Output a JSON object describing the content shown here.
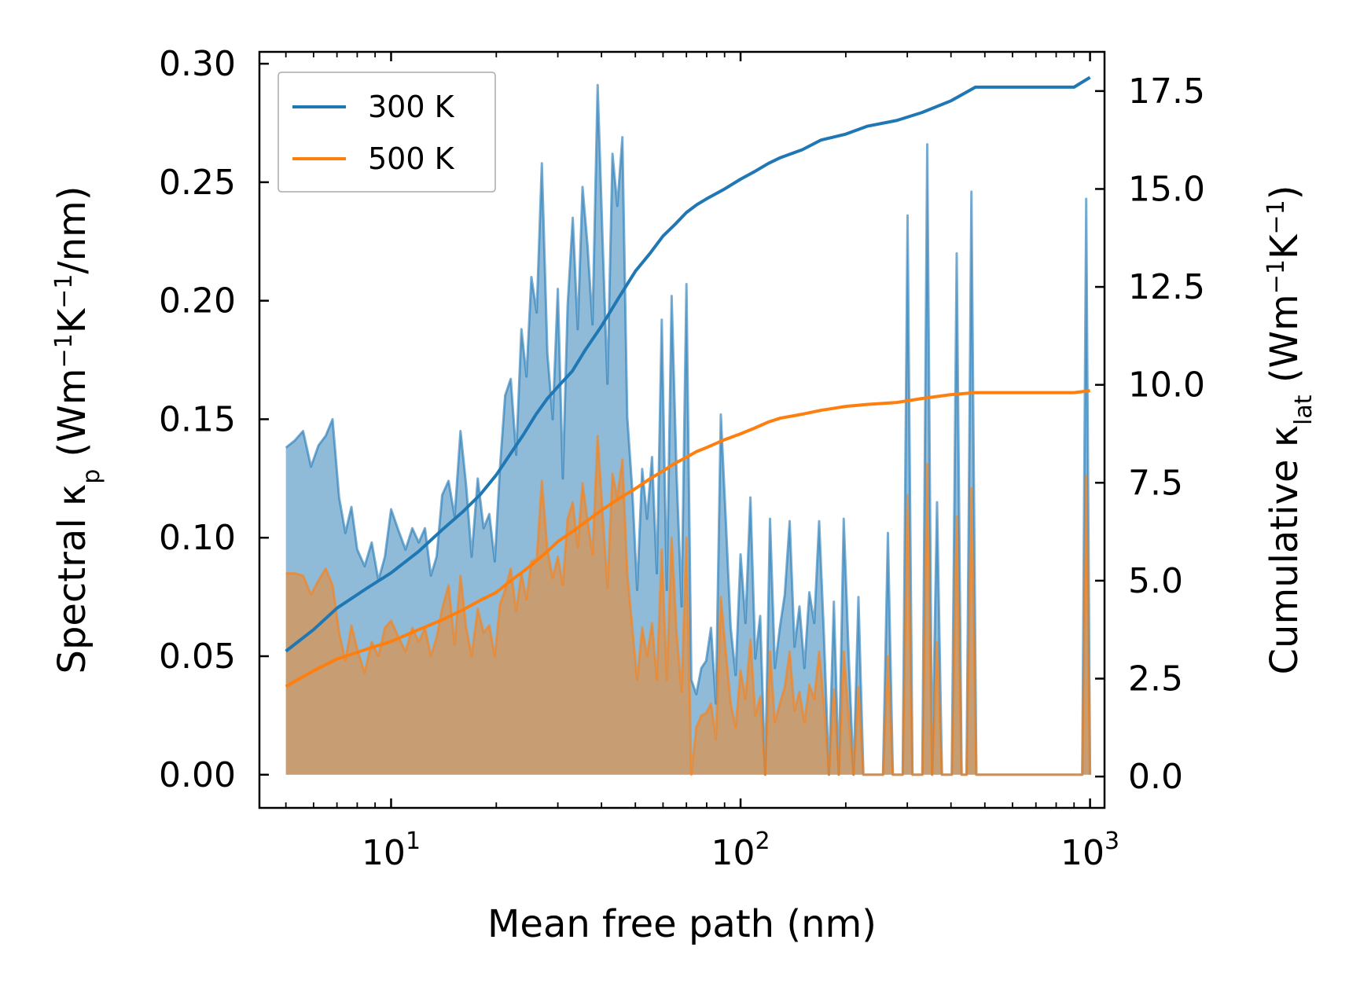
{
  "chart_data": {
    "type": "area",
    "xscale": "log",
    "xlabel": "Mean free path (nm)",
    "ylabel_left": {
      "prefix": "Spectral κ",
      "sub": "p",
      "units_open": " (Wm",
      "sup1": "−1",
      "units_mid": "K",
      "sup2": "−1",
      "units_close": "/nm)"
    },
    "ylabel_right": {
      "prefix": "Cumulative κ",
      "sub": "lat",
      "units_open": " (Wm",
      "sup1": "−1",
      "units_mid": "K",
      "sup2": "−1",
      "units_close": ")"
    },
    "xlim": [
      4.2,
      1100
    ],
    "ylim_left": [
      -0.014,
      0.305
    ],
    "ylim_right": [
      -0.8,
      18.5
    ],
    "x_ticks": [
      {
        "value": 10,
        "base": "10",
        "exp": "1"
      },
      {
        "value": 100,
        "base": "10",
        "exp": "2"
      },
      {
        "value": 1000,
        "base": "10",
        "exp": "3"
      }
    ],
    "y_ticks_left": [
      "0.00",
      "0.05",
      "0.10",
      "0.15",
      "0.20",
      "0.25",
      "0.30"
    ],
    "y_ticks_right": [
      "0.0",
      "2.5",
      "5.0",
      "7.5",
      "10.0",
      "12.5",
      "15.0",
      "17.5"
    ],
    "legend": [
      {
        "label": "300 K",
        "color": "#1f77b4"
      },
      {
        "label": "500 K",
        "color": "#ff7f0e"
      }
    ],
    "legend_position": "top-left",
    "spectral_x": [
      5.0,
      5.3,
      5.6,
      5.9,
      6.2,
      6.5,
      6.8,
      7.1,
      7.4,
      7.7,
      8.0,
      8.4,
      8.8,
      9.2,
      9.6,
      10.0,
      10.5,
      11.0,
      11.5,
      12.0,
      12.5,
      13.0,
      13.5,
      14.0,
      14.6,
      15.2,
      15.8,
      16.4,
      17.0,
      17.7,
      18.4,
      19.1,
      19.8,
      20.5,
      21.2,
      22.0,
      22.8,
      23.6,
      24.4,
      25.2,
      26.1,
      27.0,
      28.0,
      29.0,
      30.0,
      31.0,
      32.0,
      33.1,
      34.2,
      35.3,
      36.5,
      37.7,
      39.0,
      40.3,
      41.6,
      43.0,
      44.4,
      45.9,
      47.4,
      49.0,
      50.6,
      52.3,
      54.0,
      55.8,
      57.6,
      59.5,
      61.5,
      63.5,
      65.6,
      67.8,
      70.0,
      72.3,
      74.7,
      77.2,
      79.7,
      82.3,
      85.0,
      87.8,
      90.7,
      93.7,
      96.8,
      100.0,
      103.3,
      106.7,
      110.2,
      113.8,
      117.6,
      121.4,
      125.4,
      129.5,
      133.8,
      138.2,
      142.7,
      147.4,
      152.3,
      157.3,
      162.5,
      167.8,
      173.3,
      179.0,
      184.9,
      191.0,
      197.3,
      203.8,
      210.5,
      217.4,
      224.6,
      232.0,
      239.6,
      247.5,
      255.6,
      264.0,
      272.7,
      281.7,
      291.0,
      300.5,
      310.4,
      320.6,
      331.2,
      342.1,
      353.3,
      364.9,
      376.9,
      389.3,
      402.1,
      415.4,
      429.0,
      443.2,
      457.7,
      472.8,
      488.3,
      504.4,
      950.0,
      975.0,
      1000.0
    ],
    "spectral_300K": [
      0.138,
      0.141,
      0.145,
      0.13,
      0.139,
      0.143,
      0.15,
      0.117,
      0.102,
      0.113,
      0.095,
      0.088,
      0.098,
      0.082,
      0.092,
      0.112,
      0.103,
      0.095,
      0.104,
      0.098,
      0.104,
      0.084,
      0.092,
      0.118,
      0.124,
      0.109,
      0.145,
      0.122,
      0.092,
      0.125,
      0.104,
      0.11,
      0.09,
      0.13,
      0.16,
      0.167,
      0.135,
      0.188,
      0.168,
      0.21,
      0.195,
      0.258,
      0.178,
      0.15,
      0.205,
      0.125,
      0.198,
      0.235,
      0.188,
      0.248,
      0.223,
      0.19,
      0.291,
      0.225,
      0.165,
      0.262,
      0.24,
      0.269,
      0.151,
      0.12,
      0.078,
      0.129,
      0.108,
      0.134,
      0.085,
      0.192,
      0.078,
      0.202,
      0.127,
      0.071,
      0.207,
      0.04,
      0.034,
      0.045,
      0.048,
      0.062,
      0.03,
      0.152,
      0.108,
      0.062,
      0.042,
      0.093,
      0.064,
      0.117,
      0.049,
      0.067,
      0.0,
      0.108,
      0.045,
      0.062,
      0.076,
      0.107,
      0.054,
      0.071,
      0.045,
      0.077,
      0.064,
      0.107,
      0.058,
      0.0,
      0.073,
      0.0,
      0.108,
      0.051,
      0.0,
      0.075,
      0.0,
      0.0,
      0.0,
      0.0,
      0.0,
      0.102,
      0.0,
      0.0,
      0.0,
      0.236,
      0.0,
      0.0,
      0.0,
      0.266,
      0.0,
      0.115,
      0.0,
      0.0,
      0.0,
      0.22,
      0.0,
      0.0,
      0.246,
      0.0,
      0.0,
      0.0,
      0.0,
      0.243,
      0.0
    ],
    "spectral_500K": [
      0.085,
      0.085,
      0.084,
      0.076,
      0.082,
      0.087,
      0.08,
      0.06,
      0.048,
      0.063,
      0.053,
      0.043,
      0.056,
      0.05,
      0.062,
      0.065,
      0.058,
      0.052,
      0.062,
      0.056,
      0.062,
      0.05,
      0.058,
      0.07,
      0.08,
      0.055,
      0.084,
      0.062,
      0.05,
      0.07,
      0.06,
      0.063,
      0.05,
      0.072,
      0.078,
      0.087,
      0.069,
      0.085,
      0.074,
      0.09,
      0.091,
      0.124,
      0.095,
      0.083,
      0.092,
      0.08,
      0.108,
      0.115,
      0.096,
      0.123,
      0.107,
      0.093,
      0.143,
      0.11,
      0.079,
      0.127,
      0.117,
      0.133,
      0.085,
      0.062,
      0.04,
      0.062,
      0.05,
      0.064,
      0.04,
      0.095,
      0.04,
      0.1,
      0.06,
      0.035,
      0.1,
      0.0,
      0.02,
      0.025,
      0.026,
      0.03,
      0.015,
      0.075,
      0.052,
      0.03,
      0.02,
      0.044,
      0.032,
      0.057,
      0.025,
      0.033,
      0.0,
      0.052,
      0.022,
      0.03,
      0.037,
      0.052,
      0.027,
      0.035,
      0.022,
      0.038,
      0.032,
      0.052,
      0.029,
      0.0,
      0.036,
      0.0,
      0.052,
      0.025,
      0.0,
      0.037,
      0.0,
      0.0,
      0.0,
      0.0,
      0.0,
      0.05,
      0.0,
      0.0,
      0.0,
      0.118,
      0.0,
      0.0,
      0.0,
      0.131,
      0.0,
      0.056,
      0.0,
      0.0,
      0.0,
      0.109,
      0.0,
      0.0,
      0.121,
      0.0,
      0.0,
      0.0,
      0.0,
      0.126,
      0.0
    ],
    "cumulative_x": [
      5.0,
      6.0,
      7.0,
      8.5,
      10.0,
      12.0,
      14.0,
      16.0,
      18.0,
      20.0,
      22.0,
      24.0,
      26.0,
      28.0,
      30.0,
      33.0,
      36.0,
      40.0,
      45.0,
      50.0,
      55.0,
      60.0,
      65.0,
      70.0,
      75.0,
      80.0,
      90.0,
      100.0,
      110.0,
      120.0,
      130.0,
      150.0,
      170.0,
      200.0,
      230.0,
      280.0,
      330.0,
      400.0,
      470.0,
      900.0,
      1000.0
    ],
    "cumulative_300K": [
      3.2,
      3.75,
      4.3,
      4.8,
      5.2,
      5.75,
      6.3,
      6.75,
      7.2,
      7.7,
      8.25,
      8.75,
      9.25,
      9.65,
      9.95,
      10.35,
      10.9,
      11.5,
      12.25,
      12.9,
      13.35,
      13.8,
      14.1,
      14.4,
      14.6,
      14.75,
      15.0,
      15.25,
      15.45,
      15.65,
      15.8,
      16.0,
      16.25,
      16.4,
      16.6,
      16.75,
      16.95,
      17.25,
      17.6,
      17.6,
      17.85
    ],
    "cumulative_500K": [
      2.3,
      2.7,
      3.0,
      3.25,
      3.45,
      3.75,
      4.0,
      4.25,
      4.5,
      4.7,
      5.0,
      5.25,
      5.5,
      5.75,
      6.0,
      6.25,
      6.5,
      6.8,
      7.1,
      7.35,
      7.6,
      7.8,
      8.0,
      8.15,
      8.3,
      8.4,
      8.6,
      8.75,
      8.9,
      9.05,
      9.15,
      9.25,
      9.35,
      9.45,
      9.5,
      9.55,
      9.65,
      9.75,
      9.8,
      9.8,
      9.85
    ]
  }
}
